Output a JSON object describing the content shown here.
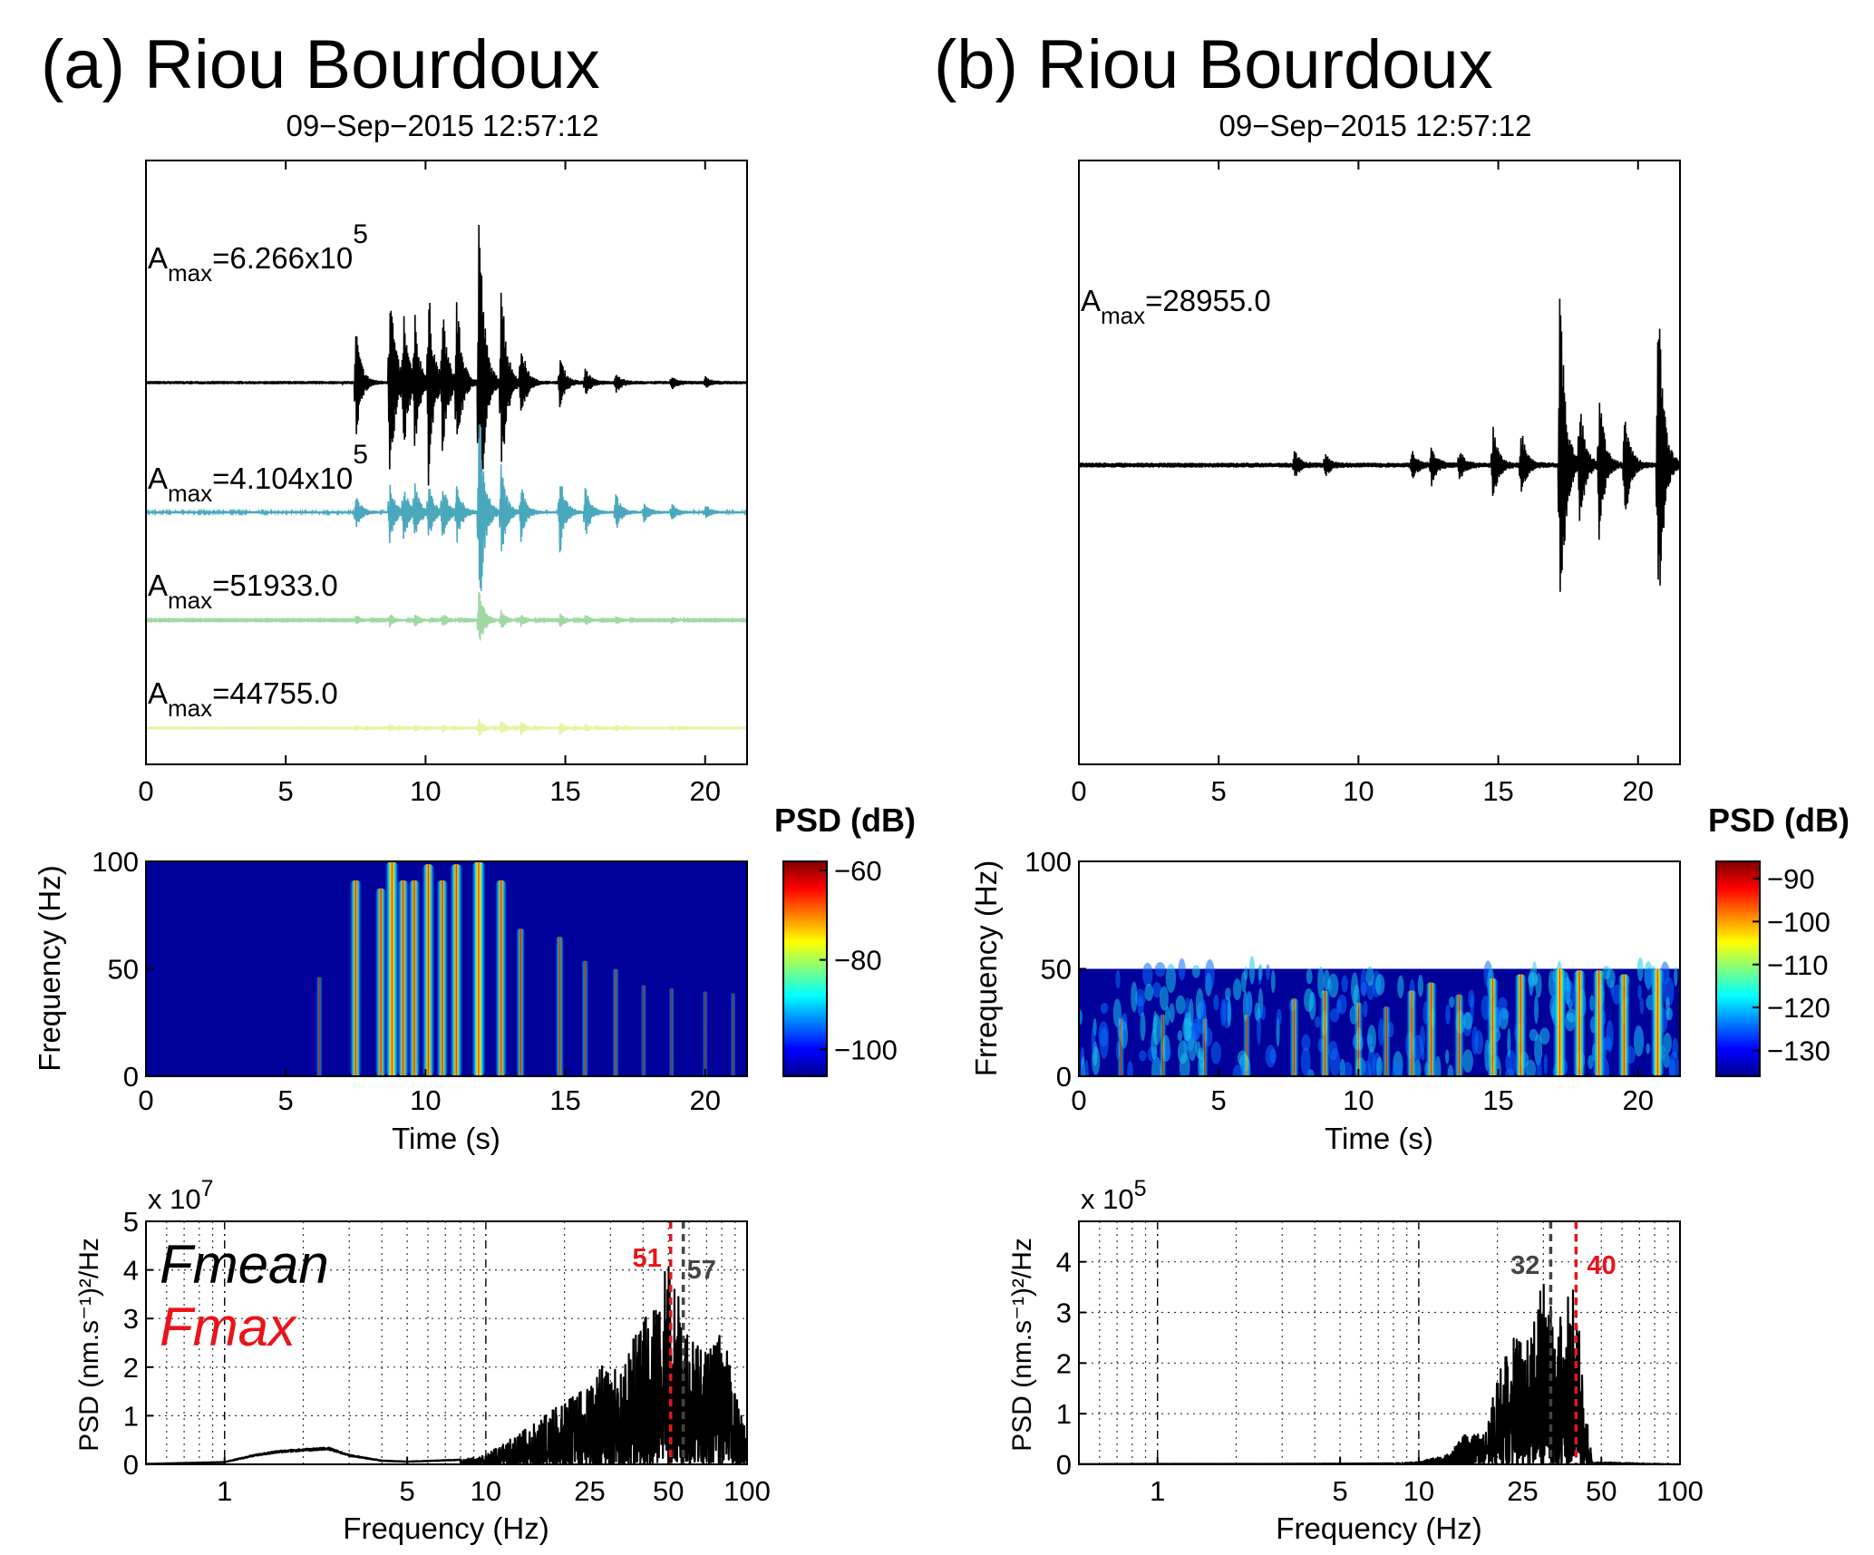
{
  "panels": [
    {
      "id": "a",
      "title": "(a) Riou Bourdoux",
      "date": "09−Sep−2015 12:57:12",
      "waveforms": {
        "xlim": [
          0,
          21.5
        ],
        "xticks": [
          "0",
          "5",
          "10",
          "15",
          "20"
        ],
        "traces": [
          {
            "color": "#000000",
            "label_base": "A",
            "label_sub": "max",
            "label_value": "=6.266x10",
            "label_exp": "5",
            "bursts": [
              [
                7.5,
                0.45
              ],
              [
                8.7,
                1.0
              ],
              [
                9.2,
                0.55
              ],
              [
                9.6,
                0.5
              ],
              [
                10.1,
                0.75
              ],
              [
                10.6,
                0.6
              ],
              [
                11.1,
                0.7
              ],
              [
                11.9,
                1.5
              ],
              [
                12.7,
                0.9
              ],
              [
                13.4,
                0.35
              ],
              [
                14.8,
                0.22
              ],
              [
                15.7,
                0.12
              ],
              [
                16.8,
                0.08
              ],
              [
                18.8,
                0.05
              ],
              [
                20.0,
                0.04
              ]
            ]
          },
          {
            "color": "#4aa8bd",
            "label_base": "A",
            "label_sub": "max",
            "label_value": "=4.104x10",
            "label_exp": "5",
            "bursts": [
              [
                7.5,
                0.2
              ],
              [
                8.7,
                0.35
              ],
              [
                9.2,
                0.3
              ],
              [
                9.6,
                0.3
              ],
              [
                10.1,
                0.3
              ],
              [
                10.6,
                0.3
              ],
              [
                11.1,
                0.35
              ],
              [
                11.9,
                1.3
              ],
              [
                12.7,
                0.5
              ],
              [
                13.4,
                0.3
              ],
              [
                14.8,
                0.45
              ],
              [
                15.7,
                0.3
              ],
              [
                16.8,
                0.2
              ],
              [
                17.8,
                0.1
              ],
              [
                18.8,
                0.1
              ],
              [
                20.0,
                0.08
              ]
            ]
          },
          {
            "color": "#9fd8a3",
            "label_base": "A",
            "label_sub": "max",
            "label_value": "=51933.0",
            "label_exp": "",
            "bursts": [
              [
                7.5,
                0.1
              ],
              [
                8.7,
                0.12
              ],
              [
                9.6,
                0.12
              ],
              [
                10.6,
                0.12
              ],
              [
                11.9,
                0.55
              ],
              [
                12.7,
                0.15
              ],
              [
                13.4,
                0.1
              ],
              [
                14.8,
                0.12
              ],
              [
                15.7,
                0.1
              ],
              [
                16.8,
                0.08
              ],
              [
                18.8,
                0.06
              ]
            ]
          },
          {
            "color": "#e6f3a3",
            "label_base": "A",
            "label_sub": "max",
            "label_value": "=44755.0",
            "label_exp": "",
            "bursts": [
              [
                7.5,
                0.08
              ],
              [
                8.7,
                0.1
              ],
              [
                9.6,
                0.1
              ],
              [
                10.6,
                0.1
              ],
              [
                11.9,
                0.25
              ],
              [
                12.7,
                0.2
              ],
              [
                13.4,
                0.2
              ],
              [
                14.8,
                0.2
              ],
              [
                15.7,
                0.12
              ],
              [
                16.8,
                0.08
              ],
              [
                18.8,
                0.06
              ]
            ]
          }
        ]
      },
      "spectrogram": {
        "ylabel": "Frequency (Hz)",
        "xlabel": "Time (s)",
        "xlim": [
          0,
          21.5
        ],
        "ylim": [
          0,
          100
        ],
        "fmax_data": 100,
        "xticks": [
          "0",
          "5",
          "10",
          "15",
          "20"
        ],
        "yticks": [
          "0",
          "50",
          "100"
        ],
        "colorbar_title": "PSD (dB)",
        "clim": [
          -106,
          -58
        ],
        "colorbar_ticks": [
          "−60",
          "−80",
          "−100"
        ],
        "colorbar_tick_values": [
          -60,
          -80,
          -100
        ],
        "events": [
          [
            6.2,
            0.15
          ],
          [
            7.5,
            0.75
          ],
          [
            8.4,
            0.7
          ],
          [
            8.8,
            0.95
          ],
          [
            9.2,
            0.75
          ],
          [
            9.6,
            0.75
          ],
          [
            10.1,
            0.85
          ],
          [
            10.6,
            0.75
          ],
          [
            11.1,
            0.85
          ],
          [
            11.9,
            1.0
          ],
          [
            12.7,
            0.75
          ],
          [
            13.4,
            0.45
          ],
          [
            14.8,
            0.4
          ],
          [
            15.7,
            0.25
          ],
          [
            16.8,
            0.2
          ],
          [
            17.8,
            0.1
          ],
          [
            18.8,
            0.08
          ],
          [
            20.0,
            0.06
          ],
          [
            21.0,
            0.05
          ]
        ]
      },
      "spectrum": {
        "ylabel": "PSD (nm.s⁻¹)²/Hz",
        "xlabel": "Frequency (Hz)",
        "multiplier_base": "x 10",
        "multiplier_exp": "7",
        "xlim": [
          0.5,
          100
        ],
        "ylim": [
          0,
          5
        ],
        "xticks": [
          {
            "v": 1,
            "l": "1"
          },
          {
            "v": 5,
            "l": "5"
          },
          {
            "v": 10,
            "l": "10"
          },
          {
            "v": 25,
            "l": "25"
          },
          {
            "v": 50,
            "l": "50"
          },
          {
            "v": 100,
            "l": "100"
          }
        ],
        "yticks": [
          "0",
          "1",
          "2",
          "3",
          "4",
          "5"
        ],
        "fmax": 51,
        "fmax_label": "51",
        "fmean": 57,
        "fmean_label": "57",
        "legend": [
          "Fmean",
          "Fmax"
        ],
        "envelope": [
          [
            0.5,
            0.01
          ],
          [
            1,
            0.05
          ],
          [
            1.3,
            0.2
          ],
          [
            1.6,
            0.28
          ],
          [
            2,
            0.32
          ],
          [
            2.5,
            0.35
          ],
          [
            3,
            0.2
          ],
          [
            4,
            0.08
          ],
          [
            5,
            0.06
          ],
          [
            8,
            0.1
          ],
          [
            10,
            0.2
          ],
          [
            15,
            0.8
          ],
          [
            20,
            1.3
          ],
          [
            25,
            1.9
          ],
          [
            30,
            2.2
          ],
          [
            35,
            2.4
          ],
          [
            40,
            3.0
          ],
          [
            45,
            3.3
          ],
          [
            50,
            4.3
          ],
          [
            55,
            3.4
          ],
          [
            60,
            2.6
          ],
          [
            70,
            2.3
          ],
          [
            80,
            2.9
          ],
          [
            90,
            1.5
          ],
          [
            100,
            0.6
          ]
        ]
      },
      "colors": {
        "fmax": "#e8141a",
        "fmean": "#444444"
      }
    },
    {
      "id": "b",
      "title": "(b) Riou Bourdoux",
      "date": "09−Sep−2015 12:57:12",
      "waveforms": {
        "xlim": [
          0,
          21.5
        ],
        "xticks": [
          "0",
          "5",
          "10",
          "15",
          "20"
        ],
        "traces": [
          {
            "color": "#000000",
            "label_base": "A",
            "label_sub": "max",
            "label_value": "=28955.0",
            "label_exp": "",
            "bursts": [
              [
                7.7,
                0.07
              ],
              [
                8.8,
                0.06
              ],
              [
                11.9,
                0.08
              ],
              [
                12.6,
                0.1
              ],
              [
                13.6,
                0.08
              ],
              [
                14.8,
                0.2
              ],
              [
                15.8,
                0.2
              ],
              [
                17.2,
                1.0
              ],
              [
                17.9,
                0.35
              ],
              [
                18.6,
                0.4
              ],
              [
                19.5,
                0.35
              ],
              [
                20.7,
                1.0
              ]
            ]
          }
        ]
      },
      "spectrogram": {
        "ylabel": "Frrequency (Hz)",
        "xlabel": "Time (s)",
        "xlim": [
          0,
          21.5
        ],
        "ylim": [
          0,
          100
        ],
        "fmax_data": 50,
        "xticks": [
          "0",
          "5",
          "10",
          "15",
          "20"
        ],
        "yticks": [
          "0",
          "50",
          "100"
        ],
        "colorbar_title": "PSD (dB)",
        "clim": [
          -136,
          -86
        ],
        "colorbar_ticks": [
          "−90",
          "−100",
          "−110",
          "−120",
          "−130"
        ],
        "colorbar_tick_values": [
          -90,
          -100,
          -110,
          -120,
          -130
        ],
        "events": [
          [
            1.5,
            0.25
          ],
          [
            3.0,
            0.3
          ],
          [
            4.5,
            0.25
          ],
          [
            6.0,
            0.3
          ],
          [
            7.7,
            0.5
          ],
          [
            8.8,
            0.6
          ],
          [
            10.0,
            0.45
          ],
          [
            11.0,
            0.4
          ],
          [
            11.9,
            0.6
          ],
          [
            12.6,
            0.7
          ],
          [
            13.6,
            0.55
          ],
          [
            14.8,
            0.75
          ],
          [
            15.8,
            0.8
          ],
          [
            17.2,
            0.95
          ],
          [
            17.9,
            0.85
          ],
          [
            18.6,
            0.85
          ],
          [
            19.5,
            0.8
          ],
          [
            20.7,
            0.95
          ]
        ]
      },
      "spectrum": {
        "ylabel": "PSD (nm.s⁻¹)²/Hz",
        "xlabel": "Frequency (Hz)",
        "multiplier_base": "x 10",
        "multiplier_exp": "5",
        "xlim": [
          0.5,
          100
        ],
        "ylim": [
          0,
          4.8
        ],
        "xticks": [
          {
            "v": 1,
            "l": "1"
          },
          {
            "v": 5,
            "l": "5"
          },
          {
            "v": 10,
            "l": "10"
          },
          {
            "v": 25,
            "l": "25"
          },
          {
            "v": 50,
            "l": "50"
          },
          {
            "v": 100,
            "l": "100"
          }
        ],
        "yticks": [
          "0",
          "1",
          "2",
          "3",
          "4"
        ],
        "fmax": 40,
        "fmax_label": "40",
        "fmean": 32,
        "fmean_label": "32",
        "legend": [],
        "envelope": [
          [
            0.5,
            0.005
          ],
          [
            1,
            0.01
          ],
          [
            3,
            0.01
          ],
          [
            8,
            0.02
          ],
          [
            10,
            0.05
          ],
          [
            13,
            0.2
          ],
          [
            15,
            0.6
          ],
          [
            18,
            0.6
          ],
          [
            20,
            1.8
          ],
          [
            23,
            2.5
          ],
          [
            25,
            2.4
          ],
          [
            28,
            3.0
          ],
          [
            30,
            3.9
          ],
          [
            33,
            2.8
          ],
          [
            36,
            3.2
          ],
          [
            40,
            3.85
          ],
          [
            43,
            1.5
          ],
          [
            45,
            0.6
          ],
          [
            46,
            0.05
          ],
          [
            100,
            0.0
          ]
        ]
      },
      "colors": {
        "fmax": "#e8141a",
        "fmean": "#444444"
      }
    }
  ],
  "chart_data": [
    {
      "type": "line",
      "title": "(a) Riou Bourdoux",
      "subtitle": "09−Sep−2015 12:57:12",
      "xlim": [
        0,
        21.5
      ],
      "series": [
        {
          "name": "A max=6.266x10^5",
          "peak_times_s": [
            7.5,
            8.7,
            10.1,
            11.1,
            11.9,
            12.7
          ]
        },
        {
          "name": "A max=4.104x10^5",
          "peak_times_s": [
            11.9,
            14.8
          ]
        },
        {
          "name": "A max=51933.0",
          "peak_times_s": [
            11.9
          ]
        },
        {
          "name": "A max=44755.0",
          "peak_times_s": [
            11.9,
            12.7,
            14.8
          ]
        }
      ]
    },
    {
      "type": "heatmap",
      "xlabel": "Time (s)",
      "ylabel": "Frequency (Hz)",
      "xlim": [
        0,
        21.5
      ],
      "ylim": [
        0,
        100
      ],
      "colorbar": "PSD (dB)",
      "clim": [
        -106,
        -58
      ]
    },
    {
      "type": "line",
      "xlabel": "Frequency (Hz)",
      "ylabel": "PSD (nm.s-1)^2/Hz",
      "scale": "log-x",
      "multiplier": "x 10^7",
      "xlim": [
        0.5,
        100
      ],
      "ylim": [
        0,
        5
      ],
      "fmax": 51,
      "fmean": 57
    },
    {
      "type": "line",
      "title": "(b) Riou Bourdoux",
      "subtitle": "09−Sep−2015 12:57:12",
      "xlim": [
        0,
        21.5
      ],
      "series": [
        {
          "name": "A max=28955.0",
          "peak_times_s": [
            17.2,
            20.7
          ]
        }
      ]
    },
    {
      "type": "heatmap",
      "xlabel": "Time (s)",
      "ylabel": "Frrequency (Hz)",
      "xlim": [
        0,
        21.5
      ],
      "ylim": [
        0,
        100
      ],
      "colorbar": "PSD (dB)",
      "clim": [
        -136,
        -86
      ]
    },
    {
      "type": "line",
      "xlabel": "Frequency (Hz)",
      "ylabel": "PSD (nm.s-1)^2/Hz",
      "scale": "log-x",
      "multiplier": "x 10^5",
      "xlim": [
        0.5,
        100
      ],
      "ylim": [
        0,
        4.8
      ],
      "fmax": 40,
      "fmean": 32
    }
  ]
}
